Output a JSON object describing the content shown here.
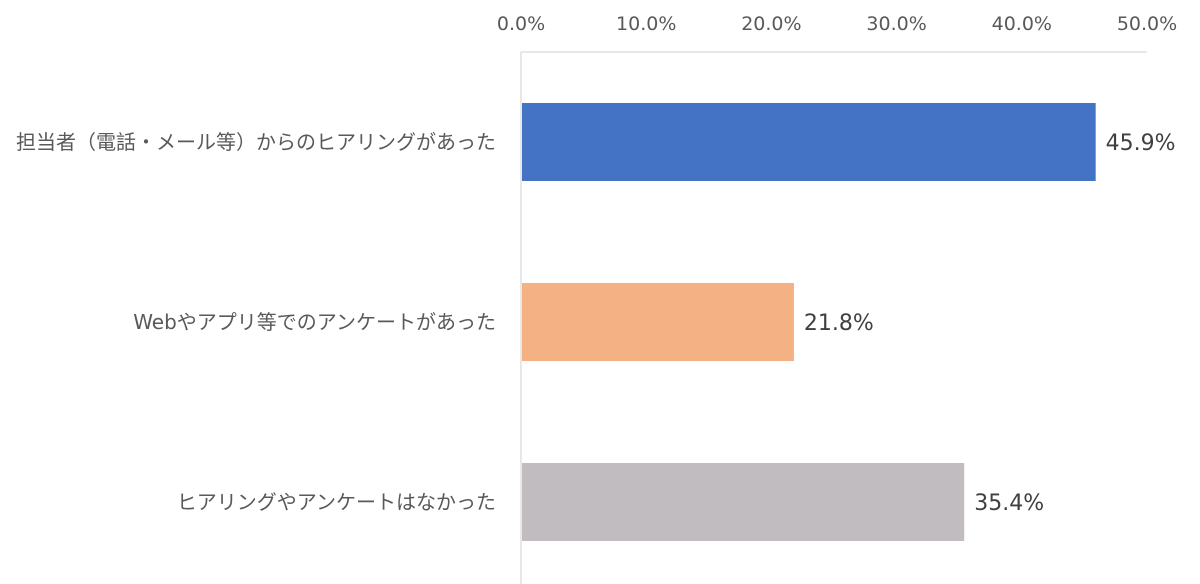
{
  "chart_data": {
    "type": "bar",
    "orientation": "horizontal",
    "categories": [
      "担当者（電話・メール等）からのヒアリングがあった",
      "Webやアプリ等でのアンケートがあった",
      "ヒアリングやアンケートはなかった"
    ],
    "values": [
      45.9,
      21.8,
      35.4
    ],
    "value_labels": [
      "45.9%",
      "21.8%",
      "35.4%"
    ],
    "colors": [
      "#4472C4",
      "#F4B183",
      "#C0BCC0"
    ],
    "xlim": [
      0,
      50
    ],
    "ticks": [
      0,
      10,
      20,
      30,
      40,
      50
    ],
    "tick_labels": [
      "0.0%",
      "10.0%",
      "20.0%",
      "30.0%",
      "40.0%",
      "50.0%"
    ],
    "axis_position": "top",
    "grid": false,
    "legend": "none",
    "title": "",
    "xlabel": "",
    "ylabel": ""
  }
}
